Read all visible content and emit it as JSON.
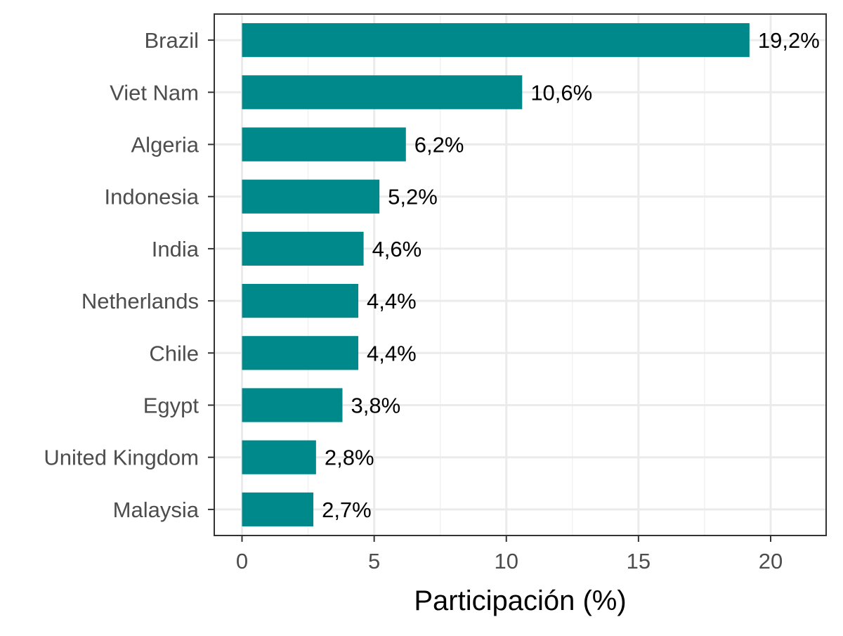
{
  "chart_data": {
    "type": "bar",
    "orientation": "horizontal",
    "categories": [
      "Brazil",
      "Viet Nam",
      "Algeria",
      "Indonesia",
      "India",
      "Netherlands",
      "Chile",
      "Egypt",
      "United Kingdom",
      "Malaysia"
    ],
    "values": [
      19.2,
      10.6,
      6.2,
      5.2,
      4.6,
      4.4,
      4.4,
      3.8,
      2.8,
      2.7
    ],
    "data_labels": [
      "19,2%",
      "10,6%",
      "6,2%",
      "5,2%",
      "4,6%",
      "4,4%",
      "4,4%",
      "3,8%",
      "2,8%",
      "2,7%"
    ],
    "title": "",
    "xlabel": "Participación (%)",
    "ylabel": "",
    "xlim": [
      -1.05,
      22.1
    ],
    "x_ticks": [
      0,
      5,
      10,
      15,
      20
    ],
    "x_tick_labels": [
      "0",
      "5",
      "10",
      "15",
      "20"
    ],
    "grid": true,
    "legend": "none",
    "colors": {
      "bar": "#00898A",
      "grid_major": "#EBEBEB",
      "grid_minor": "#F2F2F2",
      "panel_border": "#333333",
      "tick_text": "#4D4D4D",
      "title_text": "#000000"
    }
  }
}
